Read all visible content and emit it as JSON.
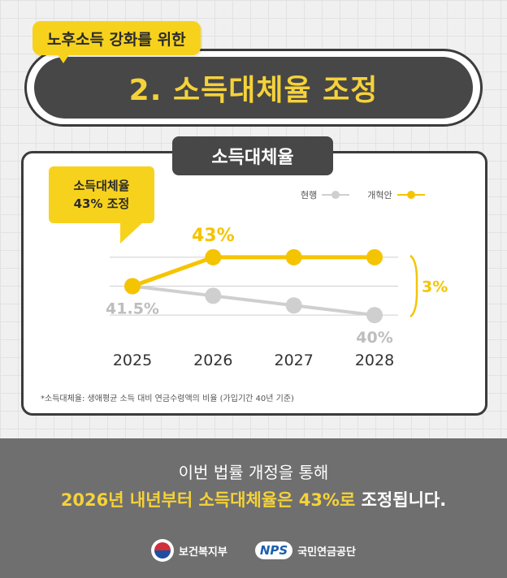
{
  "header": {
    "subtitle": "노후소득 강화를 위한",
    "title_number": "2.",
    "title_text": "소득대체율 조정"
  },
  "chart_tab": "소득대체율",
  "callout": {
    "line1": "소득대체율",
    "line2": "43% 조정"
  },
  "legend": {
    "current": "현행",
    "reform": "개혁안"
  },
  "colors": {
    "reform": "#f5c400",
    "current": "#cfcfcf",
    "accent": "#f7d21d",
    "dark": "#474747"
  },
  "chart_data": {
    "type": "line",
    "x": [
      "2025",
      "2026",
      "2027",
      "2028"
    ],
    "series": [
      {
        "name": "현행",
        "values": [
          41.5,
          41,
          40.5,
          40
        ],
        "color": "#cfcfcf"
      },
      {
        "name": "개혁안",
        "values": [
          41.5,
          43,
          43,
          43
        ],
        "color": "#f5c400"
      }
    ],
    "ylim": [
      39.5,
      43.5
    ],
    "grid": true,
    "legend": "top-right",
    "data_labels": {
      "reform_2026": "43%",
      "current_2025": "41.5%",
      "current_2028": "40%",
      "gap": "3%"
    }
  },
  "footnote": "*소득대체율: 생애평균 소득 대비 연금수령액의 비율 (가입기간 40년 기준)",
  "bottom": {
    "line1": "이번 법률 개정을 통해",
    "line2_hl1": "2026년 내년부터 소득대체율은 43%로",
    "line2_rest": " 조정됩니다."
  },
  "logos": {
    "mohw": "보건복지부",
    "nps_mark": "NPS",
    "nps_name": "국민연금공단"
  }
}
